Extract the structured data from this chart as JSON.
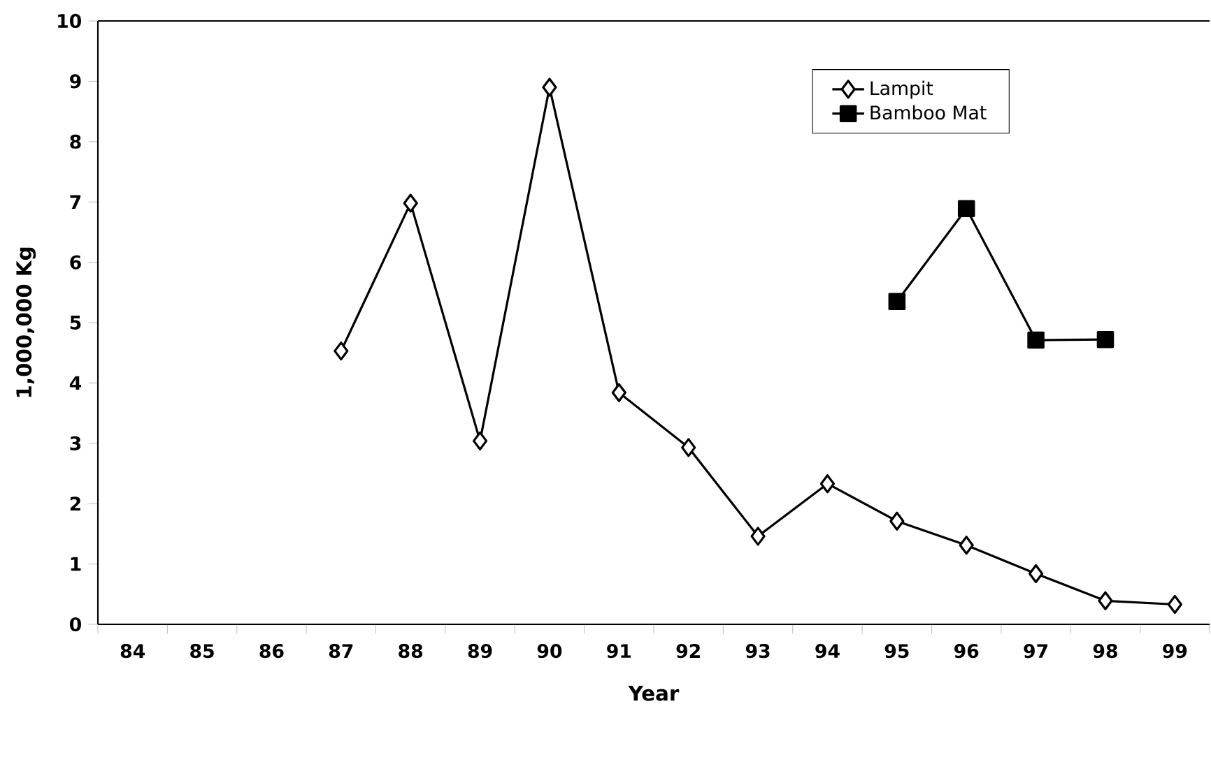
{
  "chart_data": {
    "type": "line",
    "xlabel": "Year",
    "ylabel": "1,000,000 Kg",
    "categories": [
      "84",
      "85",
      "86",
      "87",
      "88",
      "89",
      "90",
      "91",
      "92",
      "93",
      "94",
      "95",
      "96",
      "97",
      "98",
      "99"
    ],
    "series": [
      {
        "name": "Lampit",
        "color": "#000000",
        "marker": "diamond",
        "values": [
          null,
          null,
          null,
          4.53,
          6.98,
          3.04,
          8.9,
          3.84,
          2.93,
          1.46,
          2.33,
          1.71,
          1.31,
          0.84,
          0.39,
          0.33
        ]
      },
      {
        "name": "Bamboo Mat",
        "color": "#000000",
        "marker": "square",
        "values": [
          null,
          null,
          null,
          null,
          null,
          null,
          null,
          null,
          null,
          null,
          null,
          5.35,
          6.89,
          4.71,
          4.72,
          null
        ]
      }
    ],
    "ylim": [
      0,
      10
    ],
    "yticks": [
      0,
      1,
      2,
      3,
      4,
      5,
      6,
      7,
      8,
      9,
      10
    ],
    "grid": false,
    "legend": "top right",
    "line_style": "solid"
  }
}
